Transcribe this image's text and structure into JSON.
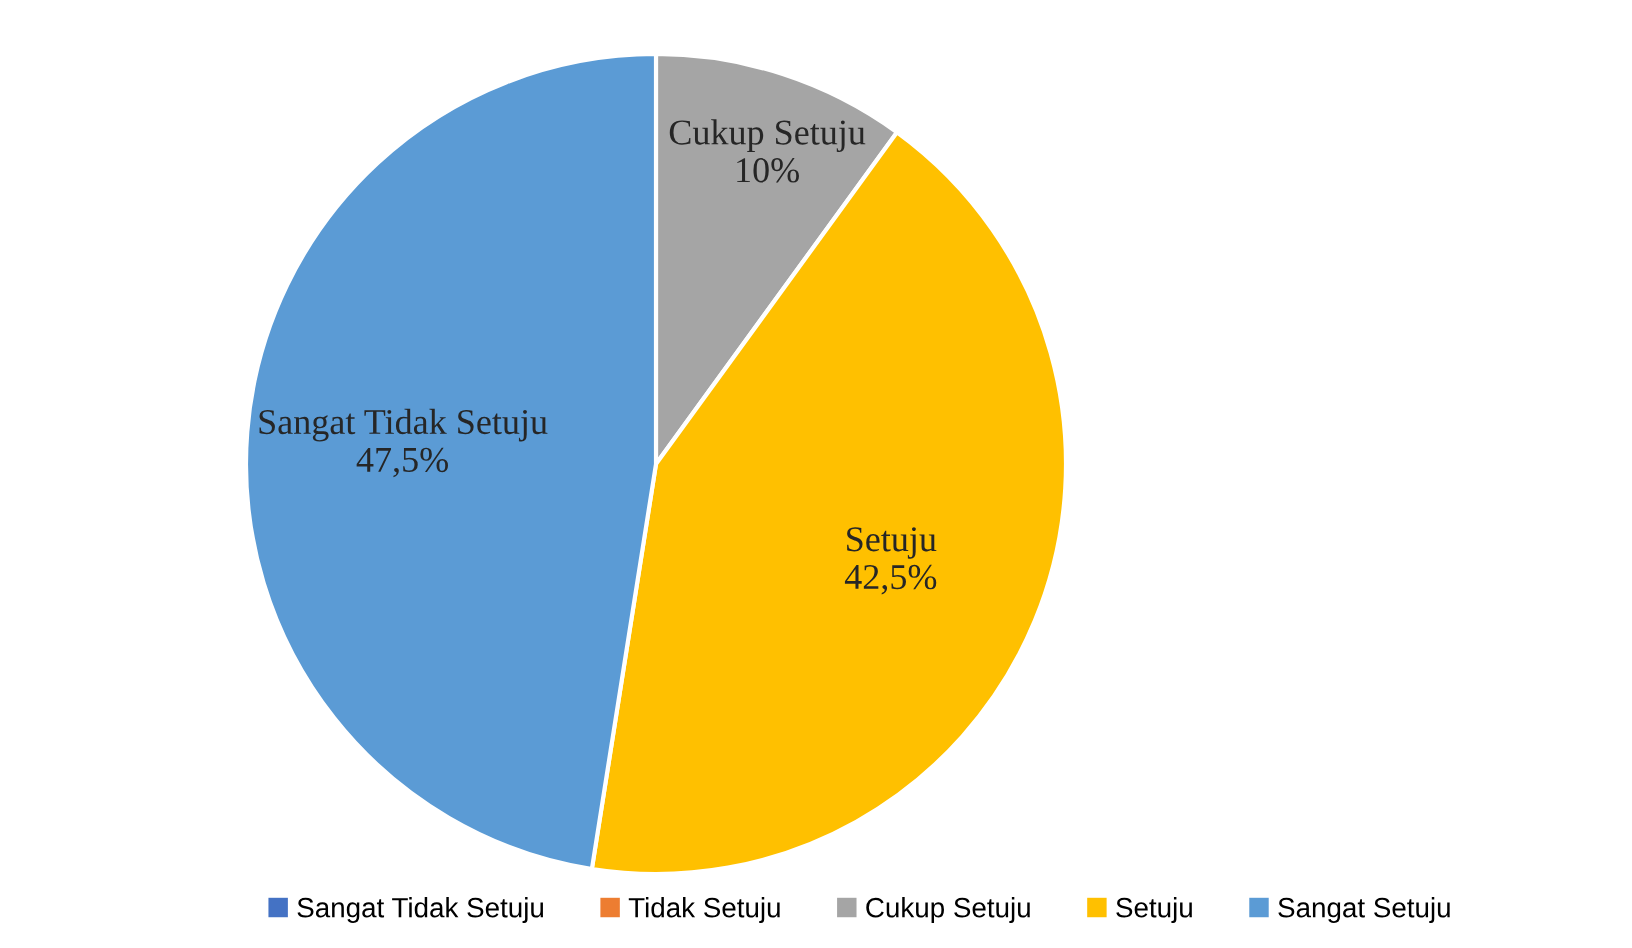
{
  "chart_data": {
    "type": "pie",
    "categories": [
      "Sangat Tidak Setuju",
      "Tidak Setuju",
      "Cukup Setuju",
      "Setuju",
      "Sangat Setuju"
    ],
    "values": [
      0,
      0,
      10,
      42.5,
      47.5
    ],
    "colors": [
      "#4472c4",
      "#ed7d31",
      "#a5a5a5",
      "#ffc000",
      "#5b9bd5"
    ],
    "value_labels": [
      null,
      null,
      "Cukup Setuju\n10%",
      "Setuju\n42,5%",
      "Sangat Tidak Setuju\n47,5%"
    ],
    "legend": "bottom"
  }
}
